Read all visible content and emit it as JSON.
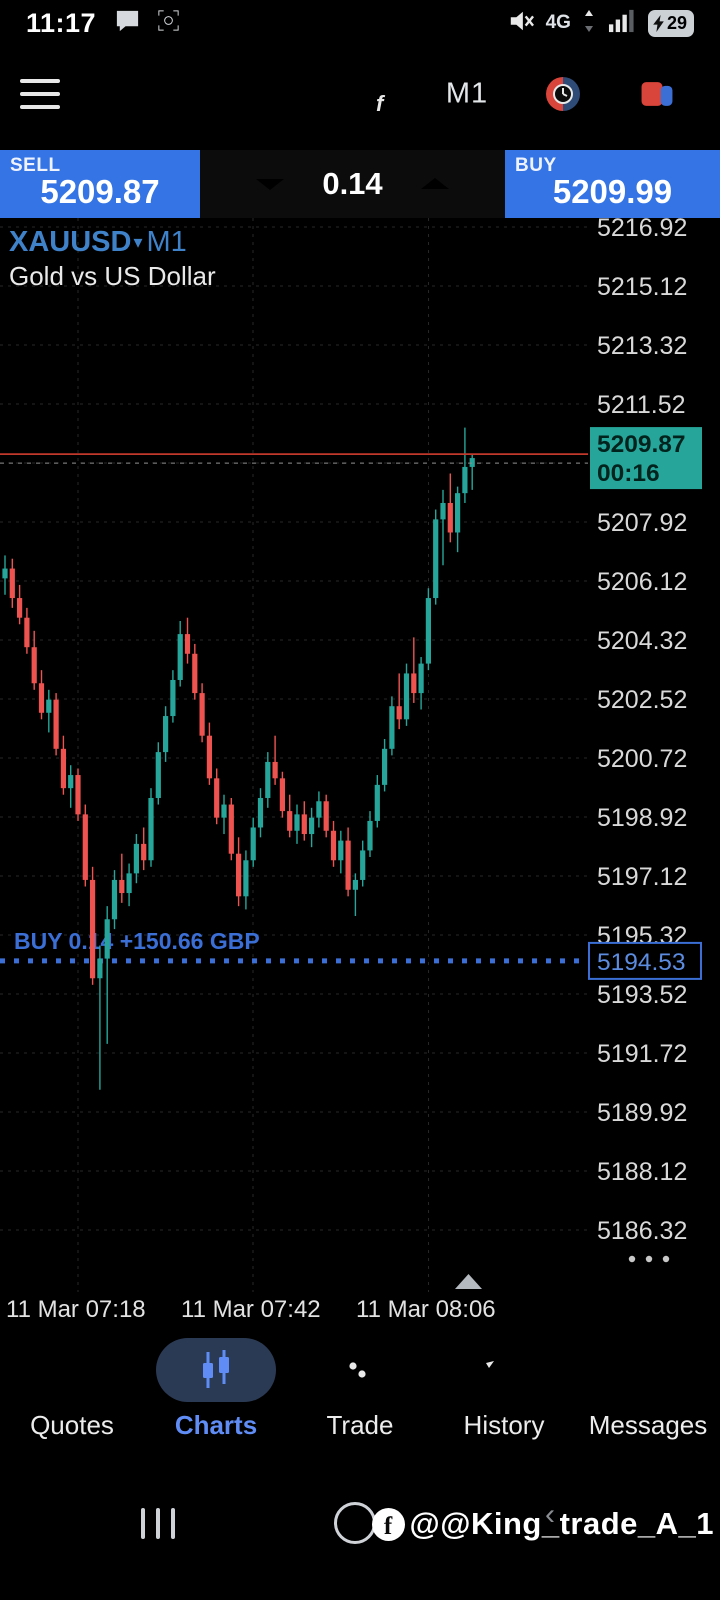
{
  "status_bar": {
    "time": "11:17",
    "network": "4G",
    "battery_percent": "29"
  },
  "toolbar": {
    "timeframe": "M1"
  },
  "quote_panel": {
    "sell_label": "SELL",
    "sell_price": "5209.87",
    "buy_label": "BUY",
    "buy_price": "5209.99",
    "volume": "0.14"
  },
  "chart": {
    "symbol": "XAUUSD",
    "symbol_caret": "▾",
    "timeframe": "M1",
    "description": "Gold vs US Dollar"
  },
  "chart_data": {
    "type": "candlestick",
    "title": "XAUUSD M1 — Gold vs US Dollar",
    "up_color": "#26a69a",
    "down_color": "#ef5350",
    "grid_color": "#272727",
    "axis_text_color": "#d9d9d9",
    "ask_line_color": "#c0392b",
    "y_grid": {
      "start": 5216.92,
      "step": 1.8,
      "count": 18
    },
    "x_axis_labels": [
      "11 Mar 07:18",
      "11 Mar 07:42",
      "11 Mar 08:06"
    ],
    "x_gridline_candle_indices": [
      10,
      34,
      58
    ],
    "ask_price": 5209.99,
    "bid_price": 5209.87,
    "current_price_label": "5209.87",
    "candle_countdown": "00:16",
    "position": {
      "price": 5194.53,
      "price_label": "5194.53",
      "label": "BUY 0.14   +150.66 GBP",
      "color": "#3b6fd6"
    },
    "candles": [
      [
        5206.2,
        5206.9,
        5205.7,
        5206.5
      ],
      [
        5206.5,
        5206.8,
        5205.3,
        5205.6
      ],
      [
        5205.6,
        5206.0,
        5204.8,
        5205.0
      ],
      [
        5205.0,
        5205.3,
        5203.9,
        5204.1
      ],
      [
        5204.1,
        5204.6,
        5202.8,
        5203.0
      ],
      [
        5203.0,
        5203.4,
        5201.9,
        5202.1
      ],
      [
        5202.1,
        5202.8,
        5201.5,
        5202.5
      ],
      [
        5202.5,
        5202.7,
        5200.8,
        5201.0
      ],
      [
        5201.0,
        5201.4,
        5199.6,
        5199.8
      ],
      [
        5199.8,
        5200.5,
        5199.2,
        5200.2
      ],
      [
        5200.2,
        5200.4,
        5198.8,
        5199.0
      ],
      [
        5199.0,
        5199.3,
        5196.8,
        5197.0
      ],
      [
        5197.0,
        5197.4,
        5193.8,
        5194.0
      ],
      [
        5194.0,
        5195.0,
        5190.6,
        5194.6
      ],
      [
        5194.6,
        5196.2,
        5192.0,
        5195.8
      ],
      [
        5195.8,
        5197.3,
        5195.5,
        5197.0
      ],
      [
        5197.0,
        5197.8,
        5196.3,
        5196.6
      ],
      [
        5196.6,
        5197.5,
        5196.2,
        5197.2
      ],
      [
        5197.2,
        5198.4,
        5196.9,
        5198.1
      ],
      [
        5198.1,
        5198.6,
        5197.3,
        5197.6
      ],
      [
        5197.6,
        5199.8,
        5197.4,
        5199.5
      ],
      [
        5199.5,
        5201.2,
        5199.3,
        5200.9
      ],
      [
        5200.9,
        5202.3,
        5200.6,
        5202.0
      ],
      [
        5202.0,
        5203.4,
        5201.8,
        5203.1
      ],
      [
        5203.1,
        5204.9,
        5202.9,
        5204.5
      ],
      [
        5204.5,
        5205.0,
        5203.6,
        5203.9
      ],
      [
        5203.9,
        5204.2,
        5202.5,
        5202.7
      ],
      [
        5202.7,
        5203.0,
        5201.2,
        5201.4
      ],
      [
        5201.4,
        5201.8,
        5199.9,
        5200.1
      ],
      [
        5200.1,
        5200.4,
        5198.7,
        5198.9
      ],
      [
        5198.9,
        5199.6,
        5198.4,
        5199.3
      ],
      [
        5199.3,
        5199.5,
        5197.6,
        5197.8
      ],
      [
        5197.8,
        5198.3,
        5196.2,
        5196.5
      ],
      [
        5196.5,
        5197.9,
        5196.1,
        5197.6
      ],
      [
        5197.6,
        5198.9,
        5197.4,
        5198.6
      ],
      [
        5198.6,
        5199.8,
        5198.3,
        5199.5
      ],
      [
        5199.5,
        5200.9,
        5199.2,
        5200.6
      ],
      [
        5200.6,
        5201.4,
        5199.9,
        5200.1
      ],
      [
        5200.1,
        5200.3,
        5198.9,
        5199.1
      ],
      [
        5199.1,
        5199.6,
        5198.3,
        5198.5
      ],
      [
        5198.5,
        5199.3,
        5198.1,
        5199.0
      ],
      [
        5199.0,
        5199.4,
        5198.2,
        5198.4
      ],
      [
        5198.4,
        5199.2,
        5198.0,
        5198.9
      ],
      [
        5198.9,
        5199.7,
        5198.6,
        5199.4
      ],
      [
        5199.4,
        5199.6,
        5198.3,
        5198.5
      ],
      [
        5198.5,
        5198.8,
        5197.4,
        5197.6
      ],
      [
        5197.6,
        5198.5,
        5197.2,
        5198.2
      ],
      [
        5198.2,
        5198.6,
        5196.5,
        5196.7
      ],
      [
        5196.7,
        5197.2,
        5195.9,
        5197.0
      ],
      [
        5197.0,
        5198.2,
        5196.8,
        5197.9
      ],
      [
        5197.9,
        5199.1,
        5197.7,
        5198.8
      ],
      [
        5198.8,
        5200.2,
        5198.6,
        5199.9
      ],
      [
        5199.9,
        5201.3,
        5199.7,
        5201.0
      ],
      [
        5201.0,
        5202.6,
        5200.8,
        5202.3
      ],
      [
        5202.3,
        5203.3,
        5201.6,
        5201.9
      ],
      [
        5201.9,
        5203.6,
        5201.7,
        5203.3
      ],
      [
        5203.3,
        5204.4,
        5202.4,
        5202.7
      ],
      [
        5202.7,
        5203.8,
        5202.2,
        5203.6
      ],
      [
        5203.6,
        5205.9,
        5203.4,
        5205.6
      ],
      [
        5205.6,
        5208.3,
        5205.4,
        5208.0
      ],
      [
        5208.0,
        5208.9,
        5206.6,
        5208.5
      ],
      [
        5208.5,
        5209.4,
        5207.3,
        5207.6
      ],
      [
        5207.6,
        5209.0,
        5207.0,
        5208.8
      ],
      [
        5208.8,
        5210.8,
        5208.5,
        5209.6
      ],
      [
        5209.6,
        5210.0,
        5208.9,
        5209.87
      ]
    ]
  },
  "bottom_nav": {
    "active_color": "#5f8df5",
    "items": [
      {
        "label": "Quotes"
      },
      {
        "label": "Charts",
        "active": true
      },
      {
        "label": "Trade"
      },
      {
        "label": "History"
      },
      {
        "label": "Messages"
      }
    ]
  },
  "android_nav": {
    "watermark": "@@King_trade_A_1",
    "facebook_glyph": "f"
  }
}
